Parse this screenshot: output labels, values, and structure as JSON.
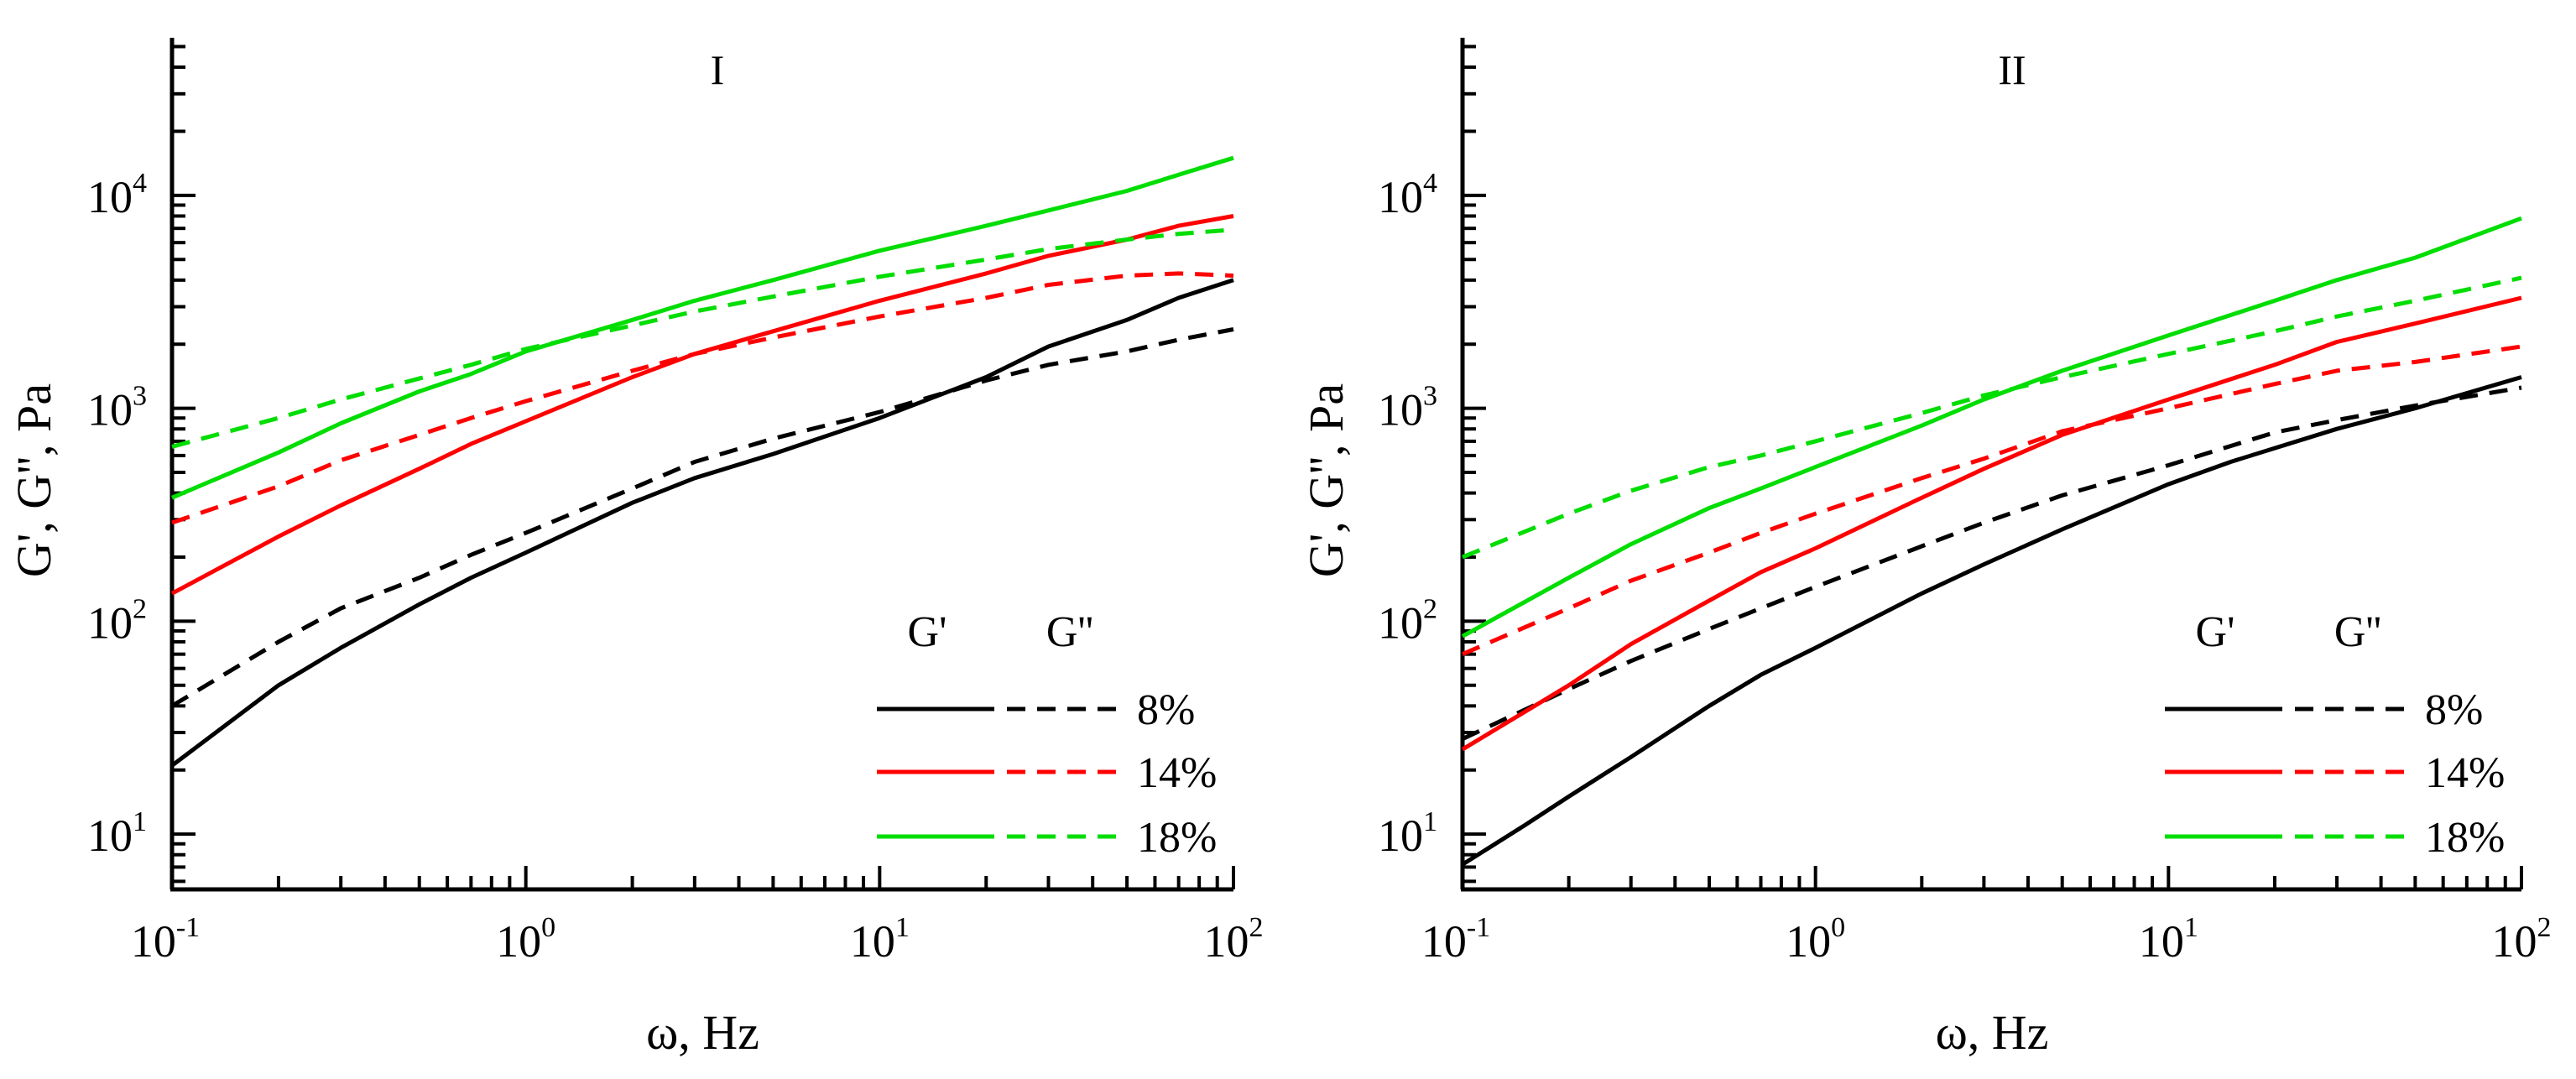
{
  "chart_data": [
    {
      "type": "line",
      "title": "I",
      "xlabel": "ω, Hz",
      "ylabel": "G', G'', Pa",
      "xscale": "log",
      "yscale": "log",
      "xlim": [
        0.1,
        100
      ],
      "ylim": [
        5.5,
        55000
      ],
      "x_ticks": [
        {
          "value": 0.1,
          "base": "10",
          "exp": "-1"
        },
        {
          "value": 1,
          "base": "10",
          "exp": "0"
        },
        {
          "value": 10,
          "base": "10",
          "exp": "1"
        },
        {
          "value": 100,
          "base": "10",
          "exp": "2"
        }
      ],
      "y_ticks": [
        {
          "value": 10,
          "base": "10",
          "exp": "1"
        },
        {
          "value": 100,
          "base": "10",
          "exp": "2"
        },
        {
          "value": 1000,
          "base": "10",
          "exp": "3"
        },
        {
          "value": 10000,
          "base": "10",
          "exp": "4"
        }
      ],
      "legend": {
        "position": "bottom-right",
        "header_solid": "G'",
        "header_dashed": "G''",
        "entries": [
          "8%",
          "14%",
          "18%"
        ]
      },
      "series": [
        {
          "name": "G' 8%",
          "color": "#000000",
          "style": "solid",
          "x": [
            0.1,
            0.2,
            0.3,
            0.5,
            0.7,
            1,
            2,
            3,
            5,
            10,
            20,
            30,
            50,
            70,
            100
          ],
          "values": [
            21,
            50,
            75,
            120,
            160,
            210,
            360,
            470,
            610,
            900,
            1400,
            1950,
            2600,
            3300,
            4000
          ]
        },
        {
          "name": "G'' 8%",
          "color": "#000000",
          "style": "dashed",
          "x": [
            0.1,
            0.2,
            0.3,
            0.5,
            0.7,
            1,
            2,
            3,
            5,
            10,
            20,
            30,
            50,
            70,
            100
          ],
          "values": [
            40,
            80,
            115,
            160,
            205,
            260,
            420,
            560,
            720,
            960,
            1350,
            1600,
            1850,
            2100,
            2350
          ]
        },
        {
          "name": "G' 14%",
          "color": "#ff0000",
          "style": "solid",
          "x": [
            0.1,
            0.2,
            0.3,
            0.5,
            0.7,
            1,
            2,
            3,
            5,
            10,
            20,
            30,
            50,
            70,
            100
          ],
          "values": [
            135,
            250,
            350,
            520,
            680,
            870,
            1400,
            1800,
            2300,
            3200,
            4300,
            5200,
            6200,
            7200,
            8000
          ]
        },
        {
          "name": "G'' 14%",
          "color": "#ff0000",
          "style": "dashed",
          "x": [
            0.1,
            0.2,
            0.3,
            0.5,
            0.7,
            1,
            2,
            3,
            5,
            10,
            20,
            30,
            50,
            70,
            100
          ],
          "values": [
            290,
            430,
            570,
            750,
            900,
            1080,
            1500,
            1800,
            2150,
            2700,
            3300,
            3800,
            4200,
            4300,
            4200
          ]
        },
        {
          "name": "G' 18%",
          "color": "#00dd00",
          "style": "solid",
          "x": [
            0.1,
            0.2,
            0.3,
            0.5,
            0.7,
            1,
            2,
            3,
            5,
            10,
            20,
            30,
            50,
            70,
            100
          ],
          "values": [
            380,
            620,
            850,
            1200,
            1450,
            1850,
            2600,
            3200,
            4000,
            5500,
            7200,
            8500,
            10500,
            12500,
            15000
          ]
        },
        {
          "name": "G'' 18%",
          "color": "#00dd00",
          "style": "dashed",
          "x": [
            0.1,
            0.2,
            0.3,
            0.5,
            0.7,
            1,
            2,
            3,
            5,
            10,
            20,
            30,
            50,
            70,
            100
          ],
          "values": [
            660,
            900,
            1100,
            1380,
            1600,
            1900,
            2450,
            2850,
            3350,
            4150,
            5000,
            5600,
            6200,
            6600,
            6900
          ]
        }
      ]
    },
    {
      "type": "line",
      "title": "II",
      "xlabel": "ω, Hz",
      "ylabel": "G', G'', Pa",
      "xscale": "log",
      "yscale": "log",
      "xlim": [
        0.1,
        100
      ],
      "ylim": [
        5.5,
        55000
      ],
      "x_ticks": [
        {
          "value": 0.1,
          "base": "10",
          "exp": "-1"
        },
        {
          "value": 1,
          "base": "10",
          "exp": "0"
        },
        {
          "value": 10,
          "base": "10",
          "exp": "1"
        },
        {
          "value": 100,
          "base": "10",
          "exp": "2"
        }
      ],
      "y_ticks": [
        {
          "value": 10,
          "base": "10",
          "exp": "1"
        },
        {
          "value": 100,
          "base": "10",
          "exp": "2"
        },
        {
          "value": 1000,
          "base": "10",
          "exp": "3"
        },
        {
          "value": 10000,
          "base": "10",
          "exp": "4"
        }
      ],
      "legend": {
        "position": "bottom-right",
        "header_solid": "G'",
        "header_dashed": "G''",
        "entries": [
          "8%",
          "14%",
          "18%"
        ]
      },
      "series": [
        {
          "name": "G' 8%",
          "color": "#000000",
          "style": "solid",
          "x": [
            0.1,
            0.15,
            0.2,
            0.3,
            0.5,
            0.7,
            1,
            2,
            3,
            5,
            10,
            15,
            20,
            30,
            50,
            100
          ],
          "values": [
            7.2,
            11,
            15,
            23,
            40,
            56,
            75,
            135,
            185,
            270,
            440,
            560,
            650,
            800,
            1000,
            1400
          ]
        },
        {
          "name": "G'' 8%",
          "color": "#000000",
          "style": "dashed",
          "x": [
            0.1,
            0.2,
            0.3,
            0.5,
            0.7,
            1,
            2,
            3,
            5,
            10,
            20,
            30,
            50,
            100
          ],
          "values": [
            28,
            48,
            65,
            92,
            115,
            145,
            225,
            290,
            390,
            540,
            770,
            880,
            1030,
            1250
          ]
        },
        {
          "name": "G' 14%",
          "color": "#ff0000",
          "style": "solid",
          "x": [
            0.1,
            0.2,
            0.3,
            0.5,
            0.7,
            1,
            2,
            3,
            5,
            10,
            20,
            30,
            50,
            100
          ],
          "values": [
            25,
            50,
            78,
            125,
            170,
            220,
            380,
            520,
            750,
            1100,
            1600,
            2050,
            2500,
            3300
          ]
        },
        {
          "name": "G'' 14%",
          "color": "#ff0000",
          "style": "dashed",
          "x": [
            0.1,
            0.2,
            0.3,
            0.5,
            0.7,
            1,
            2,
            3,
            5,
            10,
            20,
            30,
            50,
            100
          ],
          "values": [
            70,
            115,
            155,
            210,
            260,
            320,
            470,
            580,
            780,
            1000,
            1300,
            1500,
            1650,
            1950
          ]
        },
        {
          "name": "G' 18%",
          "color": "#00dd00",
          "style": "solid",
          "x": [
            0.1,
            0.2,
            0.3,
            0.5,
            0.7,
            1,
            2,
            3,
            5,
            10,
            20,
            30,
            50,
            100
          ],
          "values": [
            85,
            160,
            230,
            340,
            420,
            530,
            830,
            1100,
            1500,
            2200,
            3200,
            4000,
            5100,
            7800
          ]
        },
        {
          "name": "G'' 18%",
          "color": "#00dd00",
          "style": "dashed",
          "x": [
            0.1,
            0.2,
            0.3,
            0.5,
            0.7,
            1,
            2,
            3,
            5,
            10,
            20,
            30,
            50,
            100
          ],
          "values": [
            200,
            320,
            410,
            530,
            600,
            700,
            950,
            1150,
            1400,
            1800,
            2300,
            2700,
            3200,
            4100
          ]
        }
      ]
    }
  ]
}
